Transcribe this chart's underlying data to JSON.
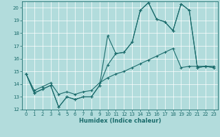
{
  "title": "",
  "xlabel": "Humidex (Indice chaleur)",
  "xlim": [
    -0.5,
    23.5
  ],
  "ylim": [
    12,
    20.5
  ],
  "yticks": [
    12,
    13,
    14,
    15,
    16,
    17,
    18,
    19,
    20
  ],
  "xticks": [
    0,
    1,
    2,
    3,
    4,
    5,
    6,
    7,
    8,
    9,
    10,
    11,
    12,
    13,
    14,
    15,
    16,
    17,
    18,
    19,
    20,
    21,
    22,
    23
  ],
  "bg_color": "#b2dcdc",
  "line_color": "#1a6b6b",
  "grid_color": "#ffffff",
  "line1_x": [
    0,
    1,
    2,
    3,
    4,
    5,
    6,
    7,
    8,
    9,
    10,
    11,
    12,
    13,
    14,
    15,
    16,
    17,
    18,
    19,
    20,
    21,
    22,
    23
  ],
  "line1_y": [
    14.8,
    13.3,
    13.6,
    13.9,
    12.2,
    13.0,
    12.8,
    13.0,
    13.0,
    13.9,
    17.8,
    16.4,
    16.5,
    17.3,
    19.8,
    20.4,
    19.1,
    18.9,
    18.2,
    20.3,
    19.8,
    15.3,
    15.4,
    15.3
  ],
  "line2_x": [
    0,
    1,
    2,
    3,
    4,
    5,
    6,
    7,
    8,
    9,
    10,
    11,
    12,
    13,
    14,
    15,
    16,
    17,
    18,
    19,
    20,
    21,
    22,
    23
  ],
  "line2_y": [
    14.8,
    13.3,
    13.6,
    13.9,
    12.2,
    13.0,
    12.8,
    13.0,
    13.0,
    13.9,
    15.5,
    16.4,
    16.5,
    17.3,
    19.8,
    20.4,
    19.1,
    18.9,
    18.2,
    20.3,
    19.8,
    15.3,
    15.4,
    15.3
  ],
  "line3_x": [
    0,
    1,
    2,
    3,
    4,
    5,
    6,
    7,
    8,
    9,
    10,
    11,
    12,
    13,
    14,
    15,
    16,
    17,
    18,
    19,
    20,
    21,
    22,
    23
  ],
  "line3_y": [
    14.8,
    13.5,
    13.8,
    14.1,
    13.2,
    13.4,
    13.2,
    13.4,
    13.5,
    14.1,
    14.5,
    14.8,
    15.0,
    15.3,
    15.6,
    15.9,
    16.2,
    16.5,
    16.8,
    15.3,
    15.4,
    15.4,
    15.4,
    15.4
  ]
}
